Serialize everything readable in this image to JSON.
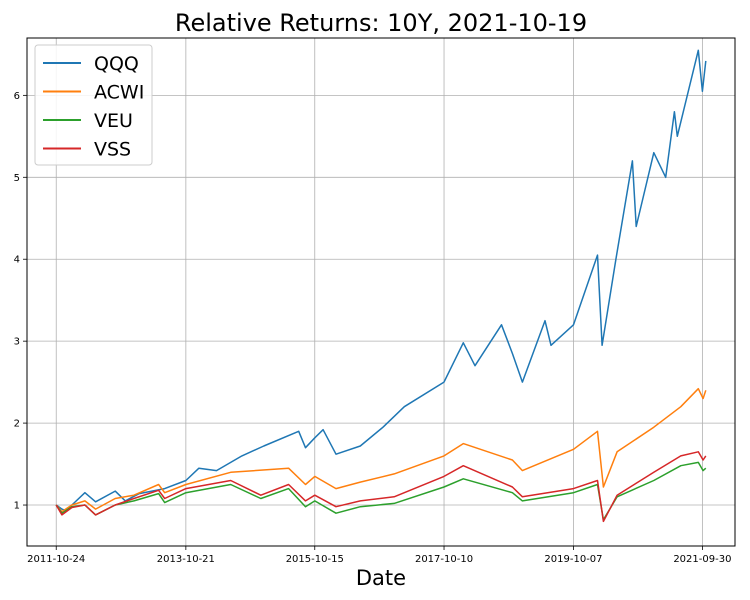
{
  "chart_data": {
    "type": "line",
    "title": "Relative Returns: 10Y, 2021-10-19",
    "xlabel": "Date",
    "ylabel": "",
    "grid": true,
    "legend_position": "top-left",
    "x_range": [
      "2011-10-24",
      "2021-10-19"
    ],
    "ylim": [
      0.5,
      6.7
    ],
    "x_ticks": [
      "2011-10-24",
      "2013-10-21",
      "2015-10-15",
      "2017-10-10",
      "2019-10-07",
      "2021-09-30"
    ],
    "y_ticks": [
      1,
      2,
      3,
      4,
      5,
      6
    ],
    "series": [
      {
        "name": "QQQ",
        "color": "#1f77b4",
        "points": [
          [
            "2011-10-24",
            1.0
          ],
          [
            "2011-11-25",
            0.95
          ],
          [
            "2011-12-19",
            0.93
          ],
          [
            "2012-01-20",
            1.0
          ],
          [
            "2012-04-02",
            1.15
          ],
          [
            "2012-06-01",
            1.04
          ],
          [
            "2012-09-19",
            1.17
          ],
          [
            "2012-11-15",
            1.05
          ],
          [
            "2013-02-01",
            1.14
          ],
          [
            "2013-06-24",
            1.2
          ],
          [
            "2013-10-21",
            1.3
          ],
          [
            "2014-01-02",
            1.45
          ],
          [
            "2014-04-11",
            1.42
          ],
          [
            "2014-09-01",
            1.6
          ],
          [
            "2015-01-02",
            1.72
          ],
          [
            "2015-07-17",
            1.9
          ],
          [
            "2015-08-24",
            1.7
          ],
          [
            "2015-10-15",
            1.82
          ],
          [
            "2015-12-01",
            1.92
          ],
          [
            "2016-02-11",
            1.62
          ],
          [
            "2016-06-27",
            1.72
          ],
          [
            "2016-11-01",
            1.95
          ],
          [
            "2017-03-01",
            2.2
          ],
          [
            "2017-10-10",
            2.5
          ],
          [
            "2018-01-26",
            2.98
          ],
          [
            "2018-04-02",
            2.7
          ],
          [
            "2018-08-29",
            3.2
          ],
          [
            "2018-10-29",
            2.85
          ],
          [
            "2018-12-24",
            2.5
          ],
          [
            "2019-04-30",
            3.25
          ],
          [
            "2019-06-03",
            2.95
          ],
          [
            "2019-10-07",
            3.2
          ],
          [
            "2020-02-19",
            4.05
          ],
          [
            "2020-03-16",
            2.95
          ],
          [
            "2020-06-01",
            4.0
          ],
          [
            "2020-09-02",
            5.2
          ],
          [
            "2020-09-23",
            4.4
          ],
          [
            "2020-12-31",
            5.3
          ],
          [
            "2021-03-08",
            5.0
          ],
          [
            "2021-04-26",
            5.8
          ],
          [
            "2021-05-12",
            5.5
          ],
          [
            "2021-09-07",
            6.55
          ],
          [
            "2021-09-30",
            6.05
          ],
          [
            "2021-10-19",
            6.42
          ]
        ]
      },
      {
        "name": "ACWI",
        "color": "#ff7f0e",
        "points": [
          [
            "2011-10-24",
            1.0
          ],
          [
            "2011-11-25",
            0.92
          ],
          [
            "2012-01-20",
            1.0
          ],
          [
            "2012-04-02",
            1.05
          ],
          [
            "2012-06-01",
            0.95
          ],
          [
            "2012-09-19",
            1.08
          ],
          [
            "2013-01-02",
            1.12
          ],
          [
            "2013-05-21",
            1.25
          ],
          [
            "2013-06-24",
            1.15
          ],
          [
            "2013-10-21",
            1.25
          ],
          [
            "2014-06-30",
            1.4
          ],
          [
            "2015-05-21",
            1.45
          ],
          [
            "2015-08-24",
            1.25
          ],
          [
            "2015-10-15",
            1.35
          ],
          [
            "2016-02-11",
            1.2
          ],
          [
            "2016-06-27",
            1.28
          ],
          [
            "2017-01-03",
            1.38
          ],
          [
            "2017-10-10",
            1.6
          ],
          [
            "2018-01-26",
            1.75
          ],
          [
            "2018-10-29",
            1.55
          ],
          [
            "2018-12-24",
            1.42
          ],
          [
            "2019-10-07",
            1.68
          ],
          [
            "2020-02-19",
            1.9
          ],
          [
            "2020-03-23",
            1.22
          ],
          [
            "2020-06-08",
            1.65
          ],
          [
            "2020-12-31",
            1.95
          ],
          [
            "2021-06-01",
            2.2
          ],
          [
            "2021-09-07",
            2.42
          ],
          [
            "2021-10-04",
            2.3
          ],
          [
            "2021-10-19",
            2.4
          ]
        ]
      },
      {
        "name": "VEU",
        "color": "#2ca02c",
        "points": [
          [
            "2011-10-24",
            1.0
          ],
          [
            "2011-11-25",
            0.9
          ],
          [
            "2012-01-20",
            0.98
          ],
          [
            "2012-04-02",
            1.0
          ],
          [
            "2012-06-01",
            0.88
          ],
          [
            "2012-09-19",
            1.0
          ],
          [
            "2013-01-02",
            1.05
          ],
          [
            "2013-05-21",
            1.14
          ],
          [
            "2013-06-24",
            1.03
          ],
          [
            "2013-10-21",
            1.15
          ],
          [
            "2014-06-30",
            1.25
          ],
          [
            "2014-12-16",
            1.08
          ],
          [
            "2015-05-21",
            1.2
          ],
          [
            "2015-08-24",
            0.98
          ],
          [
            "2015-10-15",
            1.05
          ],
          [
            "2016-02-11",
            0.9
          ],
          [
            "2016-06-27",
            0.98
          ],
          [
            "2017-01-03",
            1.02
          ],
          [
            "2017-10-10",
            1.22
          ],
          [
            "2018-01-26",
            1.32
          ],
          [
            "2018-10-29",
            1.15
          ],
          [
            "2018-12-24",
            1.05
          ],
          [
            "2019-10-07",
            1.15
          ],
          [
            "2020-02-19",
            1.25
          ],
          [
            "2020-03-23",
            0.82
          ],
          [
            "2020-06-08",
            1.1
          ],
          [
            "2020-12-31",
            1.3
          ],
          [
            "2021-06-01",
            1.48
          ],
          [
            "2021-09-07",
            1.52
          ],
          [
            "2021-10-04",
            1.42
          ],
          [
            "2021-10-19",
            1.45
          ]
        ]
      },
      {
        "name": "VSS",
        "color": "#d62728",
        "points": [
          [
            "2011-10-24",
            1.0
          ],
          [
            "2011-11-25",
            0.88
          ],
          [
            "2012-01-20",
            0.97
          ],
          [
            "2012-04-02",
            1.0
          ],
          [
            "2012-06-01",
            0.88
          ],
          [
            "2012-09-19",
            1.0
          ],
          [
            "2013-01-02",
            1.08
          ],
          [
            "2013-05-21",
            1.18
          ],
          [
            "2013-06-24",
            1.08
          ],
          [
            "2013-10-21",
            1.2
          ],
          [
            "2014-06-30",
            1.3
          ],
          [
            "2014-12-16",
            1.12
          ],
          [
            "2015-05-21",
            1.25
          ],
          [
            "2015-08-24",
            1.05
          ],
          [
            "2015-10-15",
            1.12
          ],
          [
            "2016-02-11",
            0.98
          ],
          [
            "2016-06-27",
            1.05
          ],
          [
            "2017-01-03",
            1.1
          ],
          [
            "2017-10-10",
            1.35
          ],
          [
            "2018-01-26",
            1.48
          ],
          [
            "2018-10-29",
            1.22
          ],
          [
            "2018-12-24",
            1.1
          ],
          [
            "2019-10-07",
            1.2
          ],
          [
            "2020-02-19",
            1.3
          ],
          [
            "2020-03-23",
            0.8
          ],
          [
            "2020-06-08",
            1.12
          ],
          [
            "2020-12-31",
            1.4
          ],
          [
            "2021-06-01",
            1.6
          ],
          [
            "2021-09-07",
            1.65
          ],
          [
            "2021-10-04",
            1.55
          ],
          [
            "2021-10-19",
            1.6
          ]
        ]
      }
    ]
  }
}
